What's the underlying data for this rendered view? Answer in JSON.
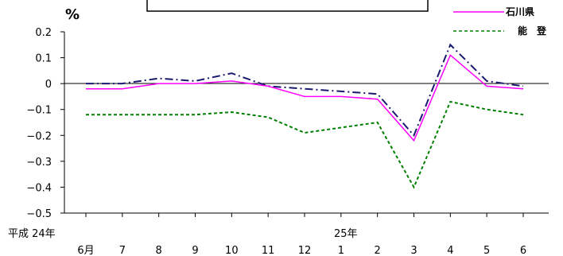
{
  "chart_data": {
    "type": "line",
    "unit_label": "%",
    "era_label": "平成 24年",
    "year2_label": "25年",
    "categories": [
      "6月",
      "7",
      "8",
      "9",
      "10",
      "11",
      "12",
      "1",
      "2",
      "3",
      "4",
      "5",
      "6"
    ],
    "ylim": [
      -0.5,
      0.2
    ],
    "yticks": [
      0.2,
      0.1,
      0,
      -0.1,
      -0.2,
      -0.3,
      -0.4,
      -0.5
    ],
    "ytick_labels": [
      "0.2",
      "0.1",
      "0",
      "−0.1",
      "−0.2",
      "−0.3",
      "−0.4",
      "−0.5"
    ],
    "grid": false,
    "legend_position": "top-right",
    "series": [
      {
        "name": "",
        "color": "#1a1a6e",
        "style": "dashdot",
        "values": [
          0.0,
          0.0,
          0.02,
          0.01,
          0.04,
          -0.01,
          -0.02,
          -0.03,
          -0.04,
          -0.2,
          0.15,
          0.01,
          -0.01
        ]
      },
      {
        "name": "石川県",
        "color": "#ff00ff",
        "style": "solid",
        "values": [
          -0.02,
          -0.02,
          0.0,
          0.0,
          0.01,
          -0.01,
          -0.05,
          -0.05,
          -0.06,
          -0.22,
          0.11,
          -0.01,
          -0.02
        ]
      },
      {
        "name": "能　登",
        "color": "#008000",
        "style": "dashed",
        "values": [
          -0.12,
          -0.12,
          -0.12,
          -0.12,
          -0.11,
          -0.13,
          -0.19,
          -0.17,
          -0.15,
          -0.4,
          -0.07,
          -0.1,
          -0.12
        ]
      }
    ]
  }
}
